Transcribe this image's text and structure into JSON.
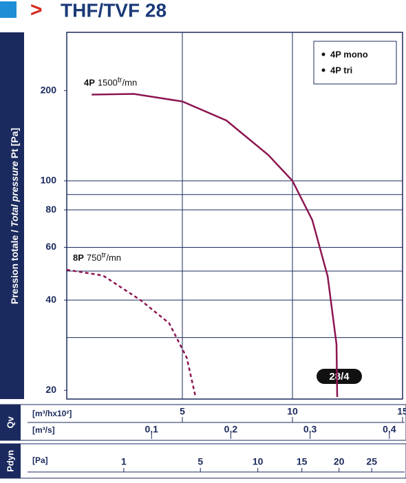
{
  "chart_data": {
    "type": "line",
    "title_marker": ">",
    "title": "THF/TVF 28",
    "y_label_fr": "Pression totale / ",
    "y_label_en": "Total pressure",
    "y_label_unit": " Pt [Pa]",
    "xlim": [
      -0.25,
      15
    ],
    "xticks": [
      5,
      10,
      15
    ],
    "xgrid": [
      5,
      10
    ],
    "ylim": [
      18.7,
      313
    ],
    "log_y": true,
    "yticks": [
      20,
      40,
      60,
      80,
      100,
      200
    ],
    "ygrid": [
      30,
      40,
      50,
      60,
      80,
      90,
      100
    ],
    "legend": [
      "4P mono",
      "4P tri"
    ],
    "badge": "28/4",
    "series": [
      {
        "name": "4P",
        "speed": "1500",
        "unit_sup": "tr",
        "unit": "/mn",
        "color": "#8c1550",
        "dashed": false,
        "x": [
          0.88,
          2.8,
          5,
          7.0,
          8.9,
          10,
          10.9,
          11.6,
          12.0,
          12.03
        ],
        "values": [
          194,
          195,
          184,
          159,
          122,
          100,
          74,
          48,
          28.5,
          19
        ]
      },
      {
        "name": "8P",
        "speed": "750",
        "unit_sup": "tr",
        "unit": "/mn",
        "color": "#8c1550",
        "dashed": true,
        "x": [
          -0.25,
          1.4,
          3.1,
          4.4,
          5.2,
          5.6
        ],
        "values": [
          50.5,
          48.3,
          40,
          33.5,
          25.7,
          19
        ]
      }
    ],
    "qv": {
      "label": "Qv",
      "unit_main": "[m³/hx10²]",
      "unit_sec": "[m³/s]",
      "ticks": [
        {
          "value": 0.1,
          "label": "0,1"
        },
        {
          "value": 0.2,
          "label": "0,2"
        },
        {
          "value": 0.3,
          "label": "0,3"
        },
        {
          "value": 0.4,
          "label": "0,4"
        }
      ]
    },
    "pdyn": {
      "label": "Pdyn",
      "unit": "[Pa]",
      "ticks": [
        1,
        5,
        10,
        15,
        20,
        25
      ]
    }
  }
}
